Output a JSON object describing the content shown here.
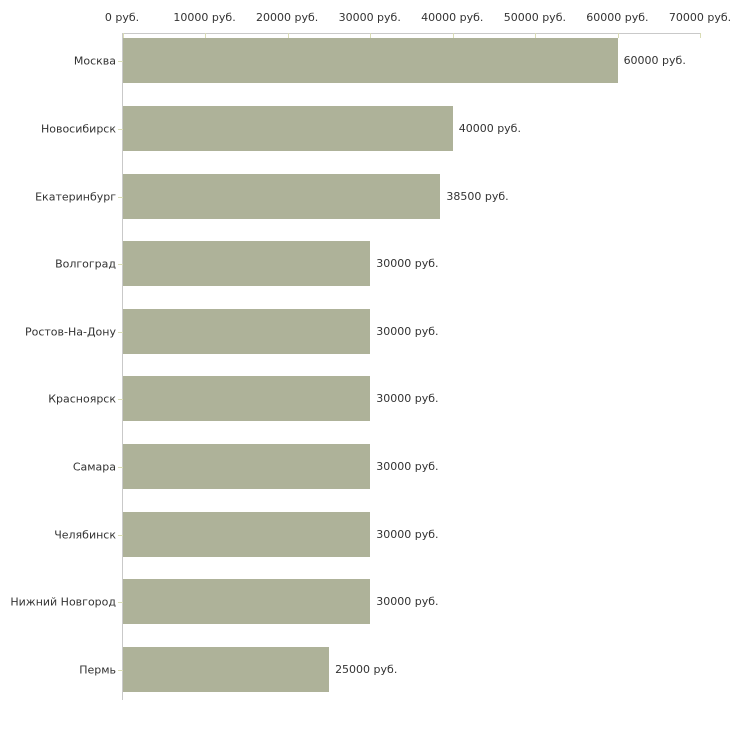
{
  "chart_data": {
    "type": "bar",
    "orientation": "horizontal",
    "title": "",
    "xlabel": "",
    "ylabel": "",
    "xlim": [
      0,
      70000
    ],
    "grid": false,
    "legend": "none",
    "x_tick_labels": [
      "0 руб.",
      "10000 руб.",
      "20000 руб.",
      "30000 руб.",
      "40000 руб.",
      "50000 руб.",
      "60000 руб.",
      "70000 руб."
    ],
    "categories": [
      "Москва",
      "Новосибирск",
      "Екатеринбург",
      "Волгоград",
      "Ростов-На-Дону",
      "Красноярск",
      "Самара",
      "Челябинск",
      "Нижний Новгород",
      "Пермь"
    ],
    "values": [
      60000,
      40000,
      38500,
      30000,
      30000,
      30000,
      30000,
      30000,
      30000,
      25000
    ],
    "value_labels": [
      "60000 руб.",
      "40000 руб.",
      "38500 руб.",
      "30000 руб.",
      "30000 руб.",
      "30000 руб.",
      "30000 руб.",
      "30000 руб.",
      "30000 руб.",
      "25000 руб."
    ],
    "colors": {
      "bar": "#aeb299",
      "axis": "#c9c9c9",
      "tick": "#d9dcb5",
      "text": "#333333",
      "background": "#ffffff"
    }
  }
}
